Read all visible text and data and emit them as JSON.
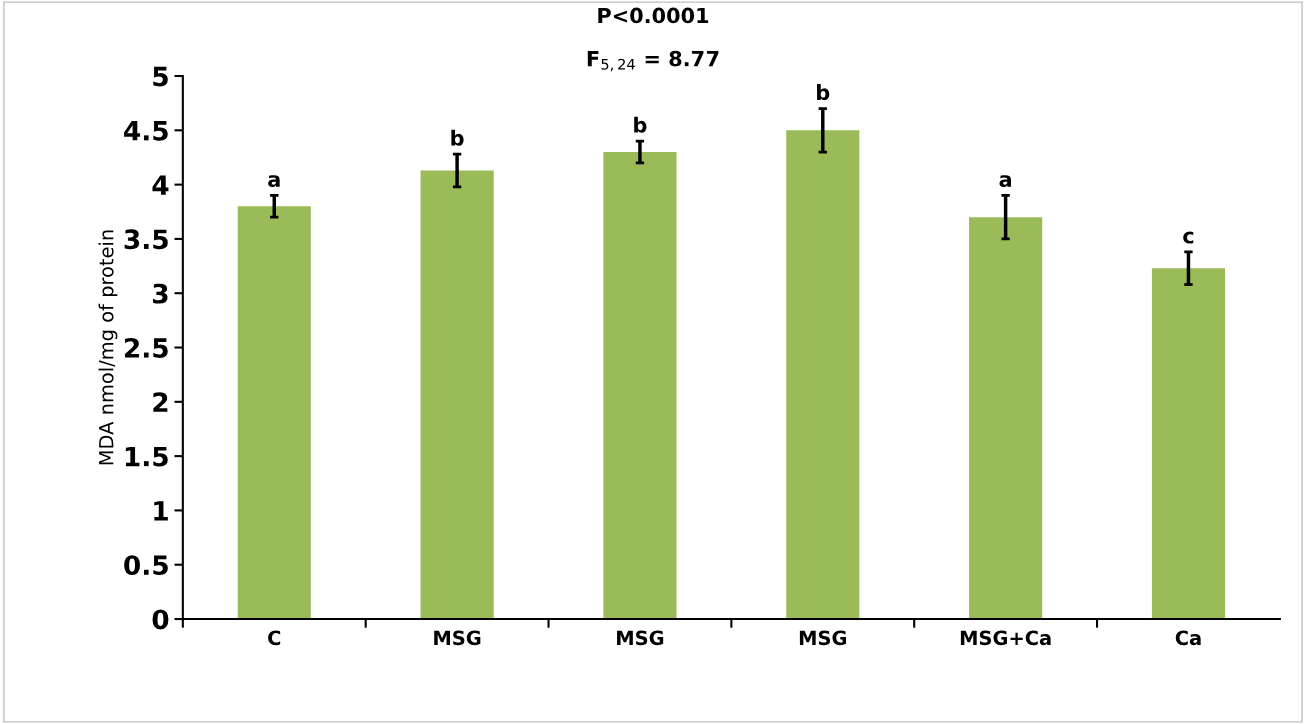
{
  "chart_data": {
    "type": "bar",
    "ylabel": "MDA nmol/mg of protein",
    "categories": [
      "C",
      "MSG",
      "MSG",
      "MSG",
      "MSG+Ca",
      "Ca"
    ],
    "values": [
      3.8,
      4.13,
      4.3,
      4.5,
      3.7,
      3.23
    ],
    "errors": [
      0.1,
      0.15,
      0.1,
      0.2,
      0.2,
      0.15
    ],
    "color": "#9bbb59",
    "ylim": [
      0,
      5
    ],
    "yticks": [
      0,
      0.5,
      1,
      1.5,
      2,
      2.5,
      3,
      3.5,
      4,
      4.5,
      5
    ],
    "grid": false,
    "legend": false,
    "annotations": [
      "P<0.0001",
      "F$_{5,24}$ = 8.77",
      "a",
      "b",
      "b",
      "b",
      "a",
      "c"
    ]
  }
}
